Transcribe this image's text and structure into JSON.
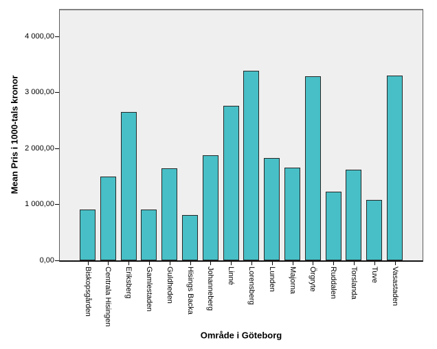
{
  "chart_data": {
    "type": "bar",
    "title": "",
    "xlabel": "Område i Göteborg",
    "ylabel": "Mean Pris i 1000-tals kronor",
    "categories": [
      "Biskopsgården",
      "Centrala Hisingen",
      "Eriksberg",
      "Gamlestaden",
      "Guldheden",
      "Hisings Backa",
      "Johanneberg",
      "Linné",
      "Lorensberg",
      "Lunden",
      "Majorna",
      "Örgryte",
      "Ruddalen",
      "Torslanda",
      "Tuve",
      "Vasastaden"
    ],
    "values": [
      910,
      1490,
      2650,
      910,
      1640,
      810,
      1880,
      2760,
      3380,
      1820,
      1660,
      3280,
      1220,
      1620,
      1080,
      3300
    ],
    "ylim": [
      0,
      4000
    ],
    "yticks": {
      "values": [
        0,
        1000,
        2000,
        3000,
        4000
      ],
      "labels": [
        "0,00",
        "1 000,00",
        "2 000,00",
        "3 000,00",
        "4 000,00"
      ]
    },
    "grid": false,
    "legend": "none",
    "colors": {
      "bar_fill": "#48BFC6",
      "bar_border": "#262626",
      "plot_bg": "#EFEFEF",
      "frame": "#828282",
      "axis_line": "#141414",
      "text": "#000000",
      "background": "#FFFFFF"
    }
  }
}
